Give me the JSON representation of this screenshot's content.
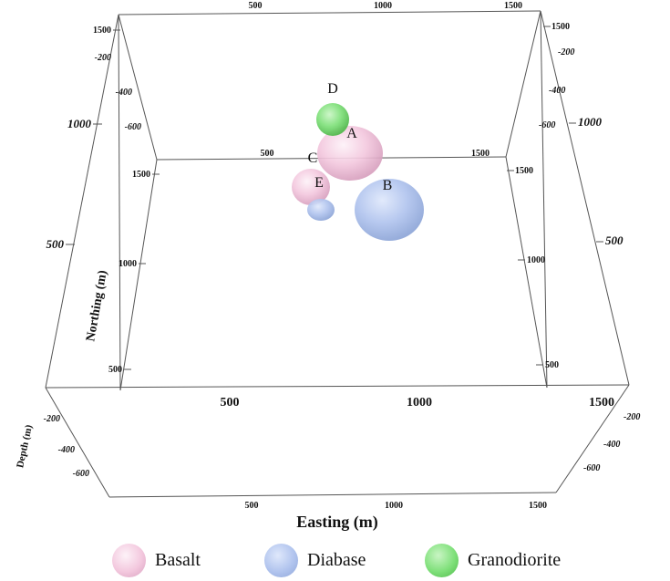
{
  "chart_data": {
    "type": "3d-scatter",
    "axes": {
      "easting": {
        "title": "Easting (m)",
        "ticks": [
          500,
          1000,
          1500
        ]
      },
      "northing": {
        "title": "Northing (m)",
        "ticks": [
          500,
          1000,
          1500
        ]
      },
      "depth": {
        "title": "Depth (m)",
        "ticks": [
          -200,
          -400,
          -600
        ]
      }
    },
    "bodies": [
      {
        "label": "A",
        "rock": "Basalt"
      },
      {
        "label": "B",
        "rock": "Diabase"
      },
      {
        "label": "C",
        "rock": "Basalt"
      },
      {
        "label": "D",
        "rock": "Granodiorite"
      },
      {
        "label": "E",
        "rock": "Basalt"
      },
      {
        "label": "",
        "rock": "Diabase"
      }
    ],
    "legend": [
      {
        "label": "Basalt",
        "color": "#f2c4dc"
      },
      {
        "label": "Diabase",
        "color": "#b3c6ee"
      },
      {
        "label": "Granodiorite",
        "color": "#7fe07a"
      }
    ]
  }
}
